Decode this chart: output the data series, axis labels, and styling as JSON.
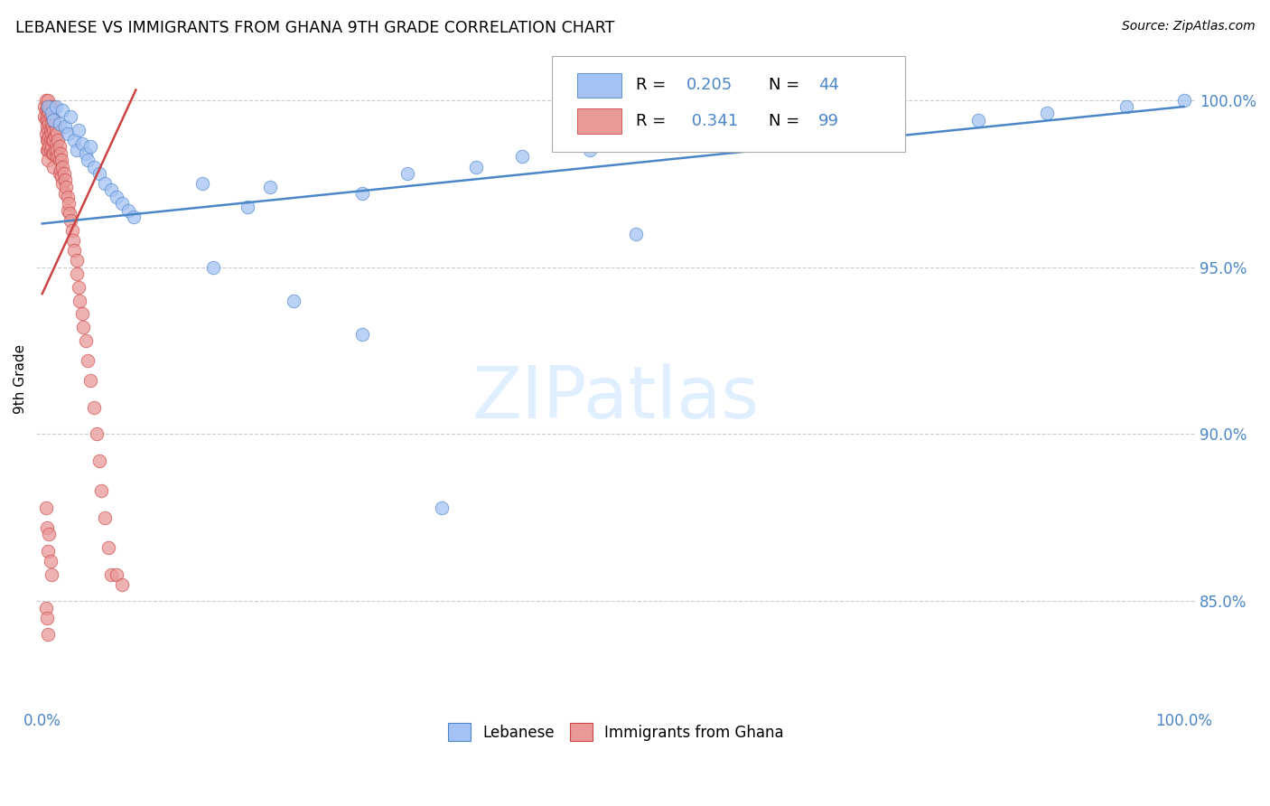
{
  "title": "LEBANESE VS IMMIGRANTS FROM GHANA 9TH GRADE CORRELATION CHART",
  "source": "Source: ZipAtlas.com",
  "ylabel": "9th Grade",
  "blue_color": "#a4c2f4",
  "pink_color": "#ea9999",
  "blue_line_color": "#4a86c8",
  "pink_line_color": "#cc4444",
  "legend_bottom_blue": "Lebanese",
  "legend_bottom_pink": "Immigrants from Ghana",
  "blue_R": 0.205,
  "blue_N": 44,
  "pink_R": 0.341,
  "pink_N": 99,
  "y_tick_vals": [
    0.85,
    0.9,
    0.95,
    1.0
  ],
  "x_tick_vals": [
    0.0,
    0.1,
    0.2,
    0.3,
    0.4,
    0.5,
    0.6,
    0.7,
    0.8,
    0.9,
    1.0
  ],
  "xlim": [
    -0.005,
    1.01
  ],
  "ylim": [
    0.818,
    1.015
  ],
  "blue_trend_x": [
    0.0,
    1.0
  ],
  "blue_trend_y": [
    0.963,
    0.998
  ],
  "pink_trend_x": [
    0.0,
    0.082
  ],
  "pink_trend_y": [
    0.942,
    1.003
  ],
  "watermark": "ZIPatlas",
  "watermark_color": "#ddeeff",
  "grid_color": "#cccccc",
  "tick_color": "#4a86c8"
}
